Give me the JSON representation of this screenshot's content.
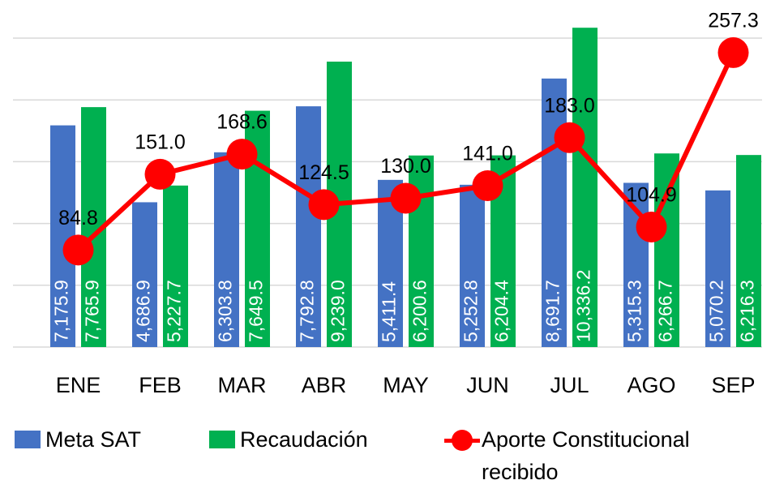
{
  "chart_data": {
    "type": "bar-line",
    "categories": [
      "ENE",
      "FEB",
      "MAR",
      "ABR",
      "MAY",
      "JUN",
      "JUL",
      "AGO",
      "SEP"
    ],
    "series": [
      {
        "name": "Meta SAT",
        "color": "#4472c4",
        "type": "bar",
        "values": [
          7175.9,
          4686.9,
          6303.8,
          7792.8,
          5411.4,
          5252.8,
          8691.7,
          5315.3,
          5070.2
        ],
        "value_labels": [
          "7,175.9",
          "4,686.9",
          "6,303.8",
          "7,792.8",
          "5,411.4",
          "5,252.8",
          "8,691.7",
          "5,315.3",
          "5,070.2"
        ]
      },
      {
        "name": "Recaudación",
        "color": "#00b050",
        "type": "bar",
        "values": [
          7765.9,
          5227.7,
          7649.5,
          9239.0,
          6200.6,
          6204.4,
          10336.2,
          6266.7,
          6216.3
        ],
        "value_labels": [
          "7,765.9",
          "5,227.7",
          "7,649.5",
          "9,239.0",
          "6,200.6",
          "6,204.4",
          "10,336.2",
          "6,266.7",
          "6,216.3"
        ]
      },
      {
        "name": "Aporte Constitucional recibido",
        "color": "#ff0000",
        "type": "line",
        "axis": "y2",
        "values": [
          84.8,
          151.0,
          168.6,
          124.5,
          130.0,
          141.0,
          183.0,
          104.9,
          257.3
        ],
        "value_labels": [
          "84.8",
          "151.0",
          "168.6",
          "124.5",
          "130.0",
          "141.0",
          "183.0",
          "104.9",
          "257.3"
        ]
      }
    ],
    "ylim": [
      0,
      10000
    ],
    "yticks": [
      0,
      2000,
      4000,
      6000,
      8000,
      10000
    ],
    "y2lim": [
      0,
      270
    ],
    "grid": true,
    "legend": "bottom"
  }
}
